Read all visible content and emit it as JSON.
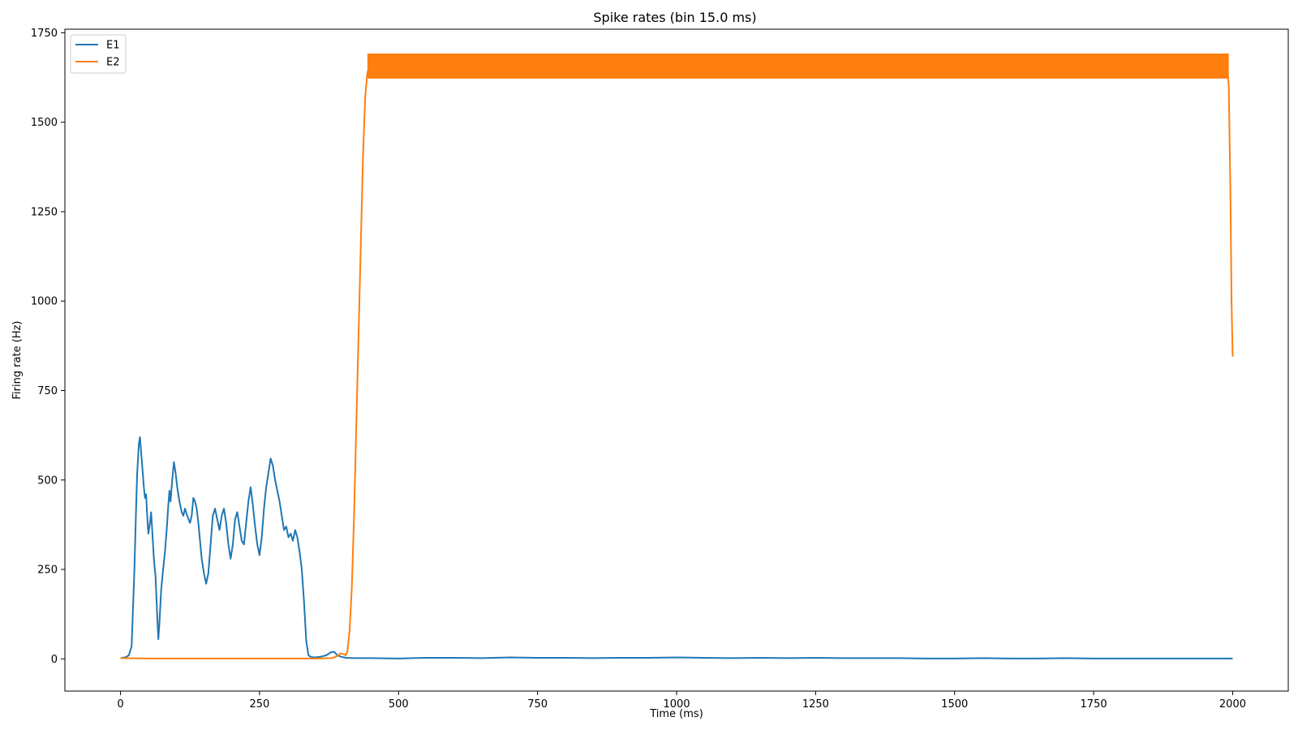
{
  "chart_data": {
    "type": "line",
    "title": "Spike rates (bin 15.0 ms)",
    "xlabel": "Time (ms)",
    "ylabel": "Firing rate (Hz)",
    "xlim": [
      -100,
      2100
    ],
    "ylim": [
      -90,
      1760
    ],
    "xticks": [
      0,
      250,
      500,
      750,
      1000,
      1250,
      1500,
      1750,
      2000
    ],
    "yticks": [
      0,
      250,
      500,
      750,
      1000,
      1250,
      1500,
      1750
    ],
    "grid": false,
    "legend_position": "upper-left",
    "series": [
      {
        "name": "E1",
        "color": "#1f77b4",
        "points": [
          [
            0,
            2
          ],
          [
            10,
            5
          ],
          [
            15,
            10
          ],
          [
            20,
            35
          ],
          [
            25,
            250
          ],
          [
            28,
            420
          ],
          [
            30,
            520
          ],
          [
            33,
            600
          ],
          [
            35,
            620
          ],
          [
            38,
            560
          ],
          [
            40,
            520
          ],
          [
            42,
            480
          ],
          [
            44,
            450
          ],
          [
            46,
            460
          ],
          [
            48,
            400
          ],
          [
            50,
            350
          ],
          [
            53,
            380
          ],
          [
            55,
            410
          ],
          [
            57,
            360
          ],
          [
            60,
            280
          ],
          [
            63,
            230
          ],
          [
            66,
            120
          ],
          [
            68,
            55
          ],
          [
            70,
            100
          ],
          [
            73,
            190
          ],
          [
            76,
            240
          ],
          [
            80,
            300
          ],
          [
            83,
            360
          ],
          [
            86,
            430
          ],
          [
            88,
            470
          ],
          [
            90,
            440
          ],
          [
            93,
            500
          ],
          [
            96,
            550
          ],
          [
            99,
            520
          ],
          [
            102,
            480
          ],
          [
            106,
            440
          ],
          [
            110,
            410
          ],
          [
            113,
            400
          ],
          [
            116,
            420
          ],
          [
            120,
            400
          ],
          [
            125,
            380
          ],
          [
            128,
            400
          ],
          [
            131,
            450
          ],
          [
            134,
            440
          ],
          [
            137,
            420
          ],
          [
            140,
            380
          ],
          [
            143,
            330
          ],
          [
            146,
            280
          ],
          [
            150,
            240
          ],
          [
            154,
            210
          ],
          [
            158,
            240
          ],
          [
            162,
            320
          ],
          [
            166,
            400
          ],
          [
            170,
            420
          ],
          [
            174,
            390
          ],
          [
            178,
            360
          ],
          [
            182,
            400
          ],
          [
            186,
            420
          ],
          [
            190,
            380
          ],
          [
            194,
            320
          ],
          [
            198,
            280
          ],
          [
            202,
            320
          ],
          [
            206,
            390
          ],
          [
            210,
            410
          ],
          [
            214,
            370
          ],
          [
            218,
            330
          ],
          [
            222,
            320
          ],
          [
            226,
            380
          ],
          [
            230,
            440
          ],
          [
            234,
            480
          ],
          [
            238,
            430
          ],
          [
            242,
            370
          ],
          [
            246,
            320
          ],
          [
            250,
            290
          ],
          [
            254,
            340
          ],
          [
            258,
            420
          ],
          [
            262,
            480
          ],
          [
            266,
            520
          ],
          [
            270,
            560
          ],
          [
            274,
            540
          ],
          [
            278,
            500
          ],
          [
            282,
            470
          ],
          [
            286,
            440
          ],
          [
            290,
            400
          ],
          [
            294,
            360
          ],
          [
            298,
            370
          ],
          [
            302,
            340
          ],
          [
            306,
            350
          ],
          [
            310,
            330
          ],
          [
            314,
            360
          ],
          [
            318,
            340
          ],
          [
            322,
            300
          ],
          [
            326,
            250
          ],
          [
            330,
            160
          ],
          [
            334,
            50
          ],
          [
            338,
            10
          ],
          [
            343,
            5
          ],
          [
            350,
            4
          ],
          [
            360,
            6
          ],
          [
            370,
            10
          ],
          [
            378,
            18
          ],
          [
            384,
            20
          ],
          [
            390,
            10
          ],
          [
            397,
            6
          ],
          [
            405,
            3
          ],
          [
            420,
            2
          ],
          [
            450,
            2
          ],
          [
            500,
            1
          ],
          [
            550,
            3
          ],
          [
            600,
            3
          ],
          [
            650,
            2
          ],
          [
            700,
            4
          ],
          [
            750,
            3
          ],
          [
            800,
            3
          ],
          [
            850,
            2
          ],
          [
            900,
            3
          ],
          [
            950,
            3
          ],
          [
            1000,
            4
          ],
          [
            1050,
            3
          ],
          [
            1100,
            2
          ],
          [
            1150,
            3
          ],
          [
            1200,
            2
          ],
          [
            1250,
            3
          ],
          [
            1300,
            2
          ],
          [
            1350,
            2
          ],
          [
            1400,
            2
          ],
          [
            1450,
            1
          ],
          [
            1500,
            1
          ],
          [
            1550,
            2
          ],
          [
            1600,
            1
          ],
          [
            1650,
            1
          ],
          [
            1700,
            2
          ],
          [
            1750,
            1
          ],
          [
            1800,
            1
          ],
          [
            1850,
            1
          ],
          [
            1900,
            1
          ],
          [
            1950,
            1
          ],
          [
            2000,
            1
          ]
        ]
      },
      {
        "name": "E2",
        "color": "#ff7f0e",
        "points": [
          [
            0,
            2
          ],
          [
            50,
            1
          ],
          [
            100,
            1
          ],
          [
            150,
            1
          ],
          [
            200,
            1
          ],
          [
            250,
            1
          ],
          [
            300,
            1
          ],
          [
            350,
            1
          ],
          [
            380,
            2
          ],
          [
            390,
            8
          ],
          [
            395,
            15
          ],
          [
            400,
            14
          ],
          [
            405,
            10
          ],
          [
            408,
            20
          ],
          [
            412,
            80
          ],
          [
            416,
            200
          ],
          [
            420,
            400
          ],
          [
            424,
            650
          ],
          [
            428,
            900
          ],
          [
            432,
            1150
          ],
          [
            436,
            1400
          ],
          [
            440,
            1570
          ],
          [
            444,
            1640
          ],
          [
            450,
            1660
          ],
          [
            500,
            1660
          ],
          [
            600,
            1660
          ],
          [
            700,
            1660
          ],
          [
            800,
            1662
          ],
          [
            900,
            1660
          ],
          [
            1000,
            1660
          ],
          [
            1100,
            1660
          ],
          [
            1200,
            1660
          ],
          [
            1300,
            1660
          ],
          [
            1400,
            1660
          ],
          [
            1500,
            1660
          ],
          [
            1600,
            1660
          ],
          [
            1700,
            1660
          ],
          [
            1800,
            1660
          ],
          [
            1900,
            1660
          ],
          [
            1990,
            1660
          ],
          [
            1993,
            1600
          ],
          [
            1996,
            1300
          ],
          [
            1998,
            1000
          ],
          [
            2000,
            845
          ]
        ],
        "band": {
          "x_start": 444,
          "x_end": 1993,
          "low": 1622,
          "high": 1692
        }
      }
    ]
  }
}
